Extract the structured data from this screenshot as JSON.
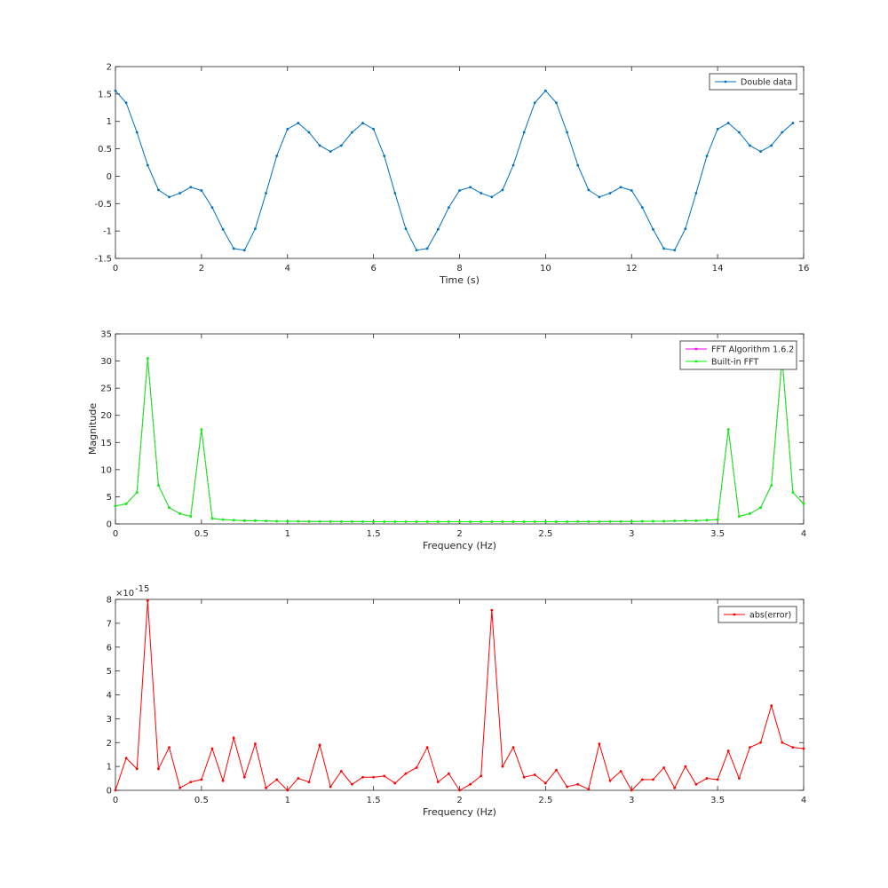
{
  "colors": {
    "background": "#ffffff",
    "axes": "#262626",
    "blue": "#0072bd",
    "magenta": "#ff00ff",
    "green": "#00ff00",
    "red": "#ff0000"
  },
  "chart_data": [
    {
      "type": "line",
      "xlabel": "Time (s)",
      "ylabel": "",
      "xlim": [
        0,
        16
      ],
      "ylim": [
        -1.5,
        2
      ],
      "xticks": [
        0,
        2,
        4,
        6,
        8,
        10,
        12,
        14,
        16
      ],
      "yticks": [
        -1.5,
        -1,
        -0.5,
        0,
        0.5,
        1,
        1.5,
        2
      ],
      "ytick_labels": [
        "-1.5",
        "-1",
        "-0.5",
        "0",
        "0.5",
        "1",
        "1.5",
        "2"
      ],
      "legend_position": "top-right",
      "series": [
        {
          "name": "Double data",
          "color": "#0072bd",
          "x": [
            0,
            0.25,
            0.5,
            0.75,
            1,
            1.25,
            1.5,
            1.75,
            2,
            2.25,
            2.5,
            2.75,
            3,
            3.25,
            3.5,
            3.75,
            4,
            4.25,
            4.5,
            4.75,
            5,
            5.25,
            5.5,
            5.75,
            6,
            6.25,
            6.5,
            6.75,
            7,
            7.25,
            7.5,
            7.75,
            8,
            8.25,
            8.5,
            8.75,
            9,
            9.25,
            9.5,
            9.75,
            10,
            10.25,
            10.5,
            10.75,
            11,
            11.25,
            11.5,
            11.75,
            12,
            12.25,
            12.5,
            12.75,
            13,
            13.25,
            13.5,
            13.75,
            14,
            14.25,
            14.5,
            14.75,
            15,
            15.25,
            15.5,
            15.75
          ],
          "y": [
            1.56,
            1.34,
            0.8,
            0.2,
            -0.25,
            -0.38,
            -0.31,
            -0.2,
            -0.26,
            -0.57,
            -0.97,
            -1.32,
            -1.35,
            -0.96,
            -0.31,
            0.37,
            0.86,
            0.97,
            0.8,
            0.56,
            0.45,
            0.56,
            0.8,
            0.97,
            0.86,
            0.37,
            -0.31,
            -0.96,
            -1.35,
            -1.32,
            -0.97,
            -0.57,
            -0.26,
            -0.2,
            -0.31,
            -0.38,
            -0.25,
            0.2,
            0.8,
            1.34,
            1.56,
            1.34,
            0.8,
            0.2,
            -0.25,
            -0.38,
            -0.31,
            -0.2,
            -0.26,
            -0.57,
            -0.97,
            -1.32,
            -1.35,
            -0.96,
            -0.31,
            0.37,
            0.86,
            0.97,
            0.8,
            0.56,
            0.45,
            0.56,
            0.8,
            0.97
          ]
        }
      ]
    },
    {
      "type": "line",
      "xlabel": "Frequency (Hz)",
      "ylabel": "Magnitude",
      "xlim": [
        0,
        4
      ],
      "ylim": [
        0,
        35
      ],
      "xticks": [
        0,
        0.5,
        1,
        1.5,
        2,
        2.5,
        3,
        3.5,
        4
      ],
      "yticks": [
        0,
        5,
        10,
        15,
        20,
        25,
        30,
        35
      ],
      "ytick_labels": [
        "0",
        "5",
        "10",
        "15",
        "20",
        "25",
        "30",
        "35"
      ],
      "legend_position": "top-right",
      "x": [
        0,
        0.0625,
        0.125,
        0.1875,
        0.25,
        0.3125,
        0.375,
        0.4375,
        0.5,
        0.5625,
        0.625,
        0.6875,
        0.75,
        0.8125,
        0.875,
        0.9375,
        1,
        1.0625,
        1.125,
        1.1875,
        1.25,
        1.3125,
        1.375,
        1.4375,
        1.5,
        1.5625,
        1.625,
        1.6875,
        1.75,
        1.8125,
        1.875,
        1.9375,
        2,
        2.0625,
        2.125,
        2.1875,
        2.25,
        2.3125,
        2.375,
        2.4375,
        2.5,
        2.5625,
        2.625,
        2.6875,
        2.75,
        2.8125,
        2.875,
        2.9375,
        3,
        3.0625,
        3.125,
        3.1875,
        3.25,
        3.3125,
        3.375,
        3.4375,
        3.5,
        3.5625,
        3.625,
        3.6875,
        3.75,
        3.8125,
        3.875,
        3.9375,
        4
      ],
      "series": [
        {
          "name": "FFT Algorithm 1.6.2",
          "color": "#ff00ff",
          "values": [
            3.3,
            3.7,
            5.8,
            30.5,
            7.1,
            3.0,
            1.9,
            1.4,
            17.4,
            1.0,
            0.8,
            0.7,
            0.6,
            0.6,
            0.55,
            0.5,
            0.5,
            0.48,
            0.46,
            0.45,
            0.44,
            0.43,
            0.42,
            0.42,
            0.41,
            0.41,
            0.4,
            0.4,
            0.4,
            0.4,
            0.4,
            0.4,
            0.4,
            0.4,
            0.4,
            0.4,
            0.4,
            0.4,
            0.4,
            0.4,
            0.4,
            0.41,
            0.41,
            0.42,
            0.42,
            0.43,
            0.44,
            0.45,
            0.46,
            0.48,
            0.5,
            0.5,
            0.55,
            0.6,
            0.6,
            0.7,
            0.8,
            17.4,
            1.4,
            1.9,
            3.0,
            7.1,
            30.5,
            5.8,
            3.7
          ]
        },
        {
          "name": "Built-in FFT",
          "color": "#00ff00",
          "values": [
            3.3,
            3.7,
            5.8,
            30.5,
            7.1,
            3.0,
            1.9,
            1.4,
            17.4,
            1.0,
            0.8,
            0.7,
            0.6,
            0.6,
            0.55,
            0.5,
            0.5,
            0.48,
            0.46,
            0.45,
            0.44,
            0.43,
            0.42,
            0.42,
            0.41,
            0.41,
            0.4,
            0.4,
            0.4,
            0.4,
            0.4,
            0.4,
            0.4,
            0.4,
            0.4,
            0.4,
            0.4,
            0.4,
            0.4,
            0.4,
            0.4,
            0.41,
            0.41,
            0.42,
            0.42,
            0.43,
            0.44,
            0.45,
            0.46,
            0.48,
            0.5,
            0.5,
            0.55,
            0.6,
            0.6,
            0.7,
            0.8,
            17.4,
            1.4,
            1.9,
            3.0,
            7.1,
            30.5,
            5.8,
            3.7
          ]
        }
      ]
    },
    {
      "type": "line",
      "xlabel": "Frequency (Hz)",
      "ylabel": "",
      "exponent_label": "×10",
      "exponent_power": "-15",
      "xlim": [
        0,
        4
      ],
      "ylim": [
        0,
        8
      ],
      "xticks": [
        0,
        0.5,
        1,
        1.5,
        2,
        2.5,
        3,
        3.5,
        4
      ],
      "yticks": [
        0,
        1,
        2,
        3,
        4,
        5,
        6,
        7,
        8
      ],
      "ytick_labels": [
        "0",
        "1",
        "2",
        "3",
        "4",
        "5",
        "6",
        "7",
        "8"
      ],
      "legend_position": "top-right",
      "x": [
        0,
        0.0625,
        0.125,
        0.1875,
        0.25,
        0.3125,
        0.375,
        0.4375,
        0.5,
        0.5625,
        0.625,
        0.6875,
        0.75,
        0.8125,
        0.875,
        0.9375,
        1,
        1.0625,
        1.125,
        1.1875,
        1.25,
        1.3125,
        1.375,
        1.4375,
        1.5,
        1.5625,
        1.625,
        1.6875,
        1.75,
        1.8125,
        1.875,
        1.9375,
        2,
        2.0625,
        2.125,
        2.1875,
        2.25,
        2.3125,
        2.375,
        2.4375,
        2.5,
        2.5625,
        2.625,
        2.6875,
        2.75,
        2.8125,
        2.875,
        2.9375,
        3,
        3.0625,
        3.125,
        3.1875,
        3.25,
        3.3125,
        3.375,
        3.4375,
        3.5,
        3.5625,
        3.625,
        3.6875,
        3.75,
        3.8125,
        3.875,
        3.9375,
        4
      ],
      "series": [
        {
          "name": "abs(error)",
          "color": "#ff0000",
          "values": [
            0,
            1.35,
            0.9,
            7.95,
            0.9,
            1.8,
            0.1,
            0.35,
            0.45,
            1.75,
            0.4,
            2.2,
            0.55,
            1.95,
            0.1,
            0.45,
            0,
            0.5,
            0.35,
            1.9,
            0.15,
            0.8,
            0.25,
            0.55,
            0.55,
            0.6,
            0.3,
            0.7,
            0.95,
            1.8,
            0.35,
            0.7,
            0,
            0.25,
            0.6,
            7.55,
            1.0,
            1.8,
            0.55,
            0.65,
            0.3,
            0.85,
            0.15,
            0.25,
            0.05,
            1.95,
            0.4,
            0.8,
            0,
            0.45,
            0.45,
            0.95,
            0.1,
            1.0,
            0.25,
            0.5,
            0.45,
            1.65,
            0.5,
            1.8,
            2.0,
            3.55,
            2.0,
            1.8,
            1.75
          ]
        }
      ]
    }
  ]
}
